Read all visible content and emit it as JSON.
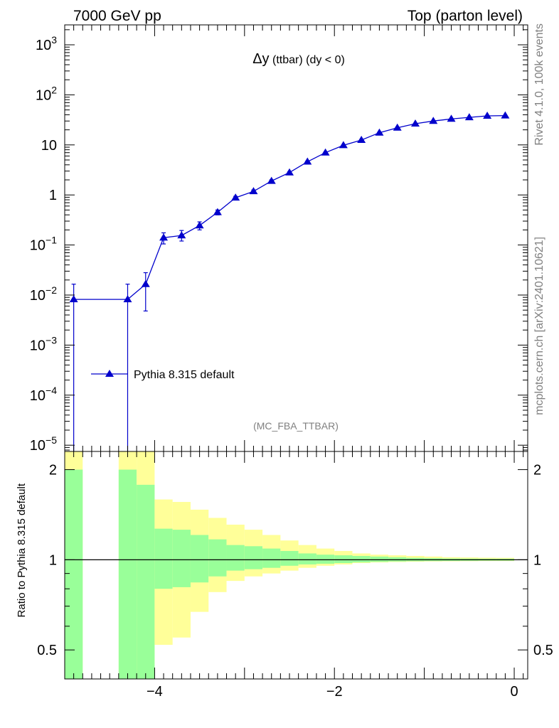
{
  "header": {
    "left": "7000 GeV pp",
    "right": "Top (parton level)"
  },
  "side_labels": {
    "rivet": "Rivet 4.1.0,  100k events",
    "mcplots": "mcplots.cern.ch [arXiv:2401.10621]"
  },
  "analysis_tag": "(MC_FBA_TTBAR)",
  "title": {
    "symbol": "Δy",
    "detail": " (ttbar) (dy < 0)"
  },
  "colors": {
    "series": "#0000cc",
    "band_inner": "#99ff99",
    "band_outer": "#ffff99",
    "axis": "#000000",
    "side_text": "#808080"
  },
  "chart_data": [
    {
      "type": "line",
      "panel": "main",
      "yscale": "log",
      "xlim": [
        -5.0,
        0.15
      ],
      "ylim": [
        7.5e-06,
        2500
      ],
      "yticks": [
        {
          "value": 1000,
          "label": "10",
          "exp": "3"
        },
        {
          "value": 100,
          "label": "10",
          "exp": "2"
        },
        {
          "value": 10,
          "label": "10",
          "exp": ""
        },
        {
          "value": 1,
          "label": "1",
          "exp": ""
        },
        {
          "value": 0.1,
          "label": "10",
          "exp": "−1"
        },
        {
          "value": 0.01,
          "label": "10",
          "exp": "−2"
        },
        {
          "value": 0.001,
          "label": "10",
          "exp": "−3"
        },
        {
          "value": 0.0001,
          "label": "10",
          "exp": "−4"
        },
        {
          "value": 1e-05,
          "label": "10",
          "exp": "−5"
        }
      ],
      "legend": {
        "label": "Pythia 8.315 default",
        "position": "lower-left"
      },
      "series": [
        {
          "name": "Pythia 8.315 default",
          "x": [
            -4.9,
            -4.3,
            -4.1,
            -3.9,
            -3.7,
            -3.5,
            -3.3,
            -3.1,
            -2.9,
            -2.7,
            -2.5,
            -2.3,
            -2.1,
            -1.9,
            -1.7,
            -1.5,
            -1.3,
            -1.1,
            -0.9,
            -0.7,
            -0.5,
            -0.3,
            -0.1
          ],
          "y": [
            0.0082,
            0.0082,
            0.0165,
            0.14,
            0.155,
            0.245,
            0.45,
            0.88,
            1.18,
            1.9,
            2.8,
            4.6,
            7.0,
            9.8,
            12.5,
            17.5,
            22.0,
            26.5,
            30.0,
            33.0,
            35.5,
            38.0,
            38.5
          ],
          "ylow": [
            1e-07,
            1e-07,
            0.0048,
            0.105,
            0.12,
            0.2,
            0.4,
            0.82,
            1.1,
            1.8,
            2.68,
            4.45,
            6.85,
            9.6,
            12.3,
            17.2,
            21.7,
            26.2,
            29.7,
            32.7,
            35.2,
            37.7,
            38.2
          ],
          "yhigh": [
            0.0165,
            0.0165,
            0.028,
            0.175,
            0.195,
            0.29,
            0.5,
            0.94,
            1.26,
            2.0,
            2.92,
            4.75,
            7.15,
            10.0,
            12.7,
            17.8,
            22.3,
            26.8,
            30.3,
            33.3,
            35.8,
            38.3,
            38.8
          ]
        }
      ]
    },
    {
      "type": "area",
      "panel": "ratio",
      "yscale": "log",
      "ylabel": "Ratio to Pythia 8.315 default",
      "xlim": [
        -5.0,
        0.15
      ],
      "ylim": [
        0.4,
        2.3
      ],
      "xticks": [
        {
          "value": -4,
          "label": "−4"
        },
        {
          "value": -2,
          "label": "−2"
        },
        {
          "value": 0,
          "label": "0"
        }
      ],
      "yticks": [
        {
          "value": 0.5,
          "label": "0.5"
        },
        {
          "value": 1,
          "label": "1"
        },
        {
          "value": 2,
          "label": "2"
        }
      ],
      "bins": [
        -5.0,
        -4.8,
        -4.4,
        -4.2,
        -4.0,
        -3.8,
        -3.6,
        -3.4,
        -3.2,
        -3.0,
        -2.8,
        -2.6,
        -2.4,
        -2.2,
        -2.0,
        -1.8,
        -1.6,
        -1.4,
        -1.2,
        -1.0,
        -0.8,
        -0.6,
        -0.4,
        -0.2,
        0.0
      ],
      "inner_low": [
        0.0,
        null,
        0.0,
        0.0,
        0.8,
        0.81,
        0.84,
        0.88,
        0.92,
        0.93,
        0.94,
        0.955,
        0.965,
        0.97,
        0.975,
        0.98,
        0.984,
        0.987,
        0.989,
        0.99,
        0.991,
        0.992,
        0.993,
        0.993
      ],
      "inner_high": [
        2.0,
        null,
        2.0,
        1.78,
        1.27,
        1.26,
        1.21,
        1.17,
        1.12,
        1.11,
        1.09,
        1.07,
        1.05,
        1.04,
        1.035,
        1.03,
        1.025,
        1.02,
        1.015,
        1.012,
        1.01,
        1.009,
        1.008,
        1.008
      ],
      "outer_low": [
        0.0,
        null,
        0.0,
        0.0,
        0.52,
        0.55,
        0.67,
        0.78,
        0.85,
        0.88,
        0.9,
        0.92,
        0.94,
        0.955,
        0.965,
        0.975,
        0.98,
        0.983,
        0.985,
        0.987,
        0.988,
        0.989,
        0.99,
        0.99
      ],
      "outer_high": [
        2.3,
        null,
        2.3,
        2.3,
        1.59,
        1.56,
        1.47,
        1.38,
        1.31,
        1.26,
        1.21,
        1.16,
        1.12,
        1.09,
        1.07,
        1.05,
        1.04,
        1.035,
        1.03,
        1.025,
        1.02,
        1.018,
        1.016,
        1.015
      ],
      "reference": 1
    }
  ]
}
